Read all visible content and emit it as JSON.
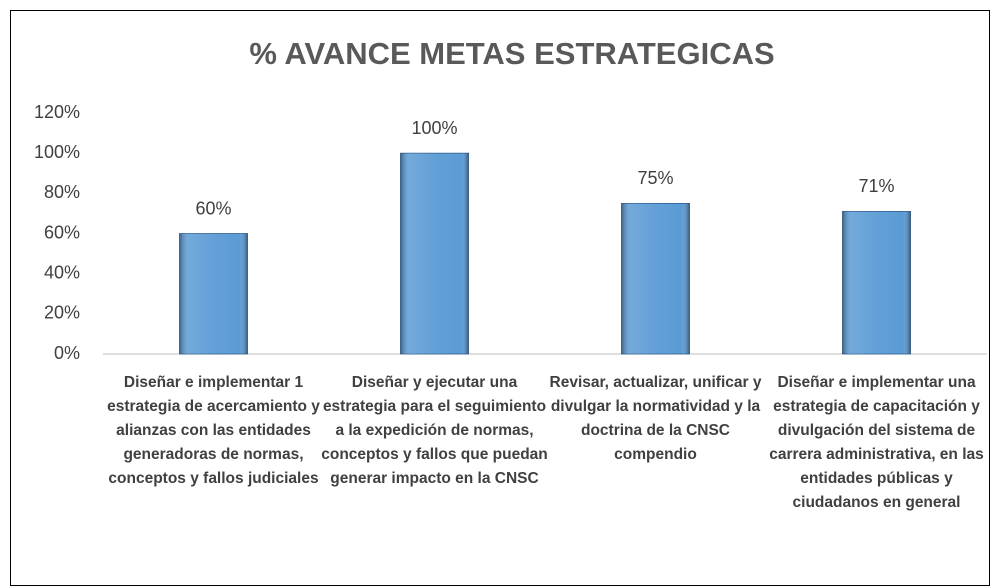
{
  "chart_data": {
    "type": "bar",
    "title": "% AVANCE METAS ESTRATEGICAS",
    "categories": [
      "Diseñar e implementar 1 estrategia de acercamiento y alianzas con las entidades generadoras de normas, conceptos y fallos judiciales",
      "Diseñar y ejecutar una estrategia para el seguimiento a la expedición de normas, conceptos y fallos que puedan generar impacto en la CNSC",
      "Revisar, actualizar, unificar y divulgar la normatividad y la doctrina de la CNSC compendio",
      "Diseñar e implementar una estrategia de capacitación y divulgación del sistema de carrera administrativa, en las entidades públicas y ciudadanos en general"
    ],
    "values": [
      60,
      100,
      75,
      71
    ],
    "value_labels": [
      "60%",
      "100%",
      "75%",
      "71%"
    ],
    "color": "#5b9bd5",
    "ylim": [
      0,
      120
    ],
    "yticks": [
      {
        "value": 0,
        "label": "0%"
      },
      {
        "value": 20,
        "label": "20%"
      },
      {
        "value": 40,
        "label": "40%"
      },
      {
        "value": 60,
        "label": "60%"
      },
      {
        "value": 80,
        "label": "80%"
      },
      {
        "value": 100,
        "label": "100%"
      },
      {
        "value": 120,
        "label": "120%"
      }
    ],
    "grid": false
  }
}
